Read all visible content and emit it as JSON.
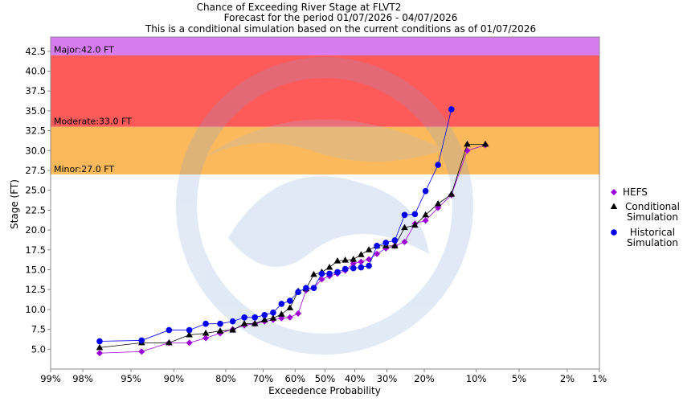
{
  "chart_data": {
    "type": "scatter",
    "title_lines": [
      "Chance of Exceeding River Stage at FLVT2",
      "Forecast for the period 01/07/2026 - 04/07/2026",
      "This is a conditional simulation based on the current conditions as of 01/07/2026"
    ],
    "xlabel": "Exceedence Probability",
    "ylabel": "Stage (FT)",
    "x_scale": "normal-probability (reversed)",
    "x_ticks": [
      {
        "p": 99,
        "label": "99%"
      },
      {
        "p": 98,
        "label": "98%"
      },
      {
        "p": 95,
        "label": "95%"
      },
      {
        "p": 90,
        "label": "90%"
      },
      {
        "p": 80,
        "label": "80%"
      },
      {
        "p": 70,
        "label": "70%"
      },
      {
        "p": 60,
        "label": "60%"
      },
      {
        "p": 50,
        "label": "50%"
      },
      {
        "p": 40,
        "label": "40%"
      },
      {
        "p": 30,
        "label": "30%"
      },
      {
        "p": 20,
        "label": "20%"
      },
      {
        "p": 10,
        "label": "10%"
      },
      {
        "p": 5,
        "label": "5%"
      },
      {
        "p": 2,
        "label": "2%"
      },
      {
        "p": 1,
        "label": "1%"
      }
    ],
    "ylim": [
      2.5,
      44.3
    ],
    "y_ticks": [
      "5.0",
      "7.5",
      "10.0",
      "12.5",
      "15.0",
      "17.5",
      "20.0",
      "22.5",
      "25.0",
      "27.5",
      "30.0",
      "32.5",
      "35.0",
      "37.5",
      "40.0",
      "42.5"
    ],
    "flood_bands": [
      {
        "label": "Minor:27.0 FT",
        "from": 27.0,
        "to": 33.0,
        "color": "#fbb95c"
      },
      {
        "label": "Moderate:33.0 FT",
        "from": 33.0,
        "to": 42.0,
        "color": "#ff5a5a"
      },
      {
        "label": "Major:42.0 FT",
        "from": 42.0,
        "to": 44.3,
        "color": "#d67cf0"
      }
    ],
    "series": [
      {
        "name": "HEFS",
        "color": "#9b00d8",
        "marker": "diamond",
        "points": [
          [
            97.2,
            4.5
          ],
          [
            94.0,
            4.7
          ],
          [
            90.7,
            5.8
          ],
          [
            87.5,
            5.8
          ],
          [
            84.4,
            6.4
          ],
          [
            81.3,
            7.0
          ],
          [
            78.3,
            7.5
          ],
          [
            75.3,
            8.0
          ],
          [
            72.4,
            8.2
          ],
          [
            69.6,
            8.5
          ],
          [
            67.0,
            8.7
          ],
          [
            64.4,
            8.9
          ],
          [
            61.7,
            9.0
          ],
          [
            59.0,
            9.5
          ],
          [
            56.4,
            12.4
          ],
          [
            53.8,
            12.7
          ],
          [
            51.1,
            13.8
          ],
          [
            48.5,
            14.2
          ],
          [
            45.8,
            14.5
          ],
          [
            43.2,
            14.9
          ],
          [
            40.5,
            15.8
          ],
          [
            38.0,
            16.0
          ],
          [
            35.5,
            16.3
          ],
          [
            33.0,
            17.0
          ],
          [
            30.3,
            17.7
          ],
          [
            27.7,
            18.0
          ],
          [
            25.0,
            18.5
          ],
          [
            22.3,
            20.8
          ],
          [
            19.7,
            21.2
          ],
          [
            16.9,
            22.8
          ],
          [
            14.2,
            24.4
          ],
          [
            11.4,
            30.0
          ],
          [
            8.7,
            30.7
          ]
        ]
      },
      {
        "name": "Conditional Simulation",
        "color": "#000000",
        "marker": "triangle",
        "points": [
          [
            97.2,
            5.2
          ],
          [
            94.0,
            5.8
          ],
          [
            90.7,
            5.8
          ],
          [
            87.5,
            6.8
          ],
          [
            84.4,
            7.0
          ],
          [
            81.3,
            7.3
          ],
          [
            78.3,
            7.4
          ],
          [
            75.3,
            8.2
          ],
          [
            72.4,
            8.2
          ],
          [
            69.6,
            8.7
          ],
          [
            67.0,
            8.9
          ],
          [
            64.4,
            9.4
          ],
          [
            61.7,
            10.2
          ],
          [
            59.0,
            12.3
          ],
          [
            56.4,
            12.6
          ],
          [
            53.8,
            14.4
          ],
          [
            51.1,
            14.7
          ],
          [
            48.5,
            15.3
          ],
          [
            45.8,
            16.1
          ],
          [
            43.2,
            16.2
          ],
          [
            40.5,
            16.3
          ],
          [
            38.0,
            16.9
          ],
          [
            35.5,
            17.5
          ],
          [
            33.0,
            18.0
          ],
          [
            30.3,
            18.0
          ],
          [
            27.7,
            18.0
          ],
          [
            25.0,
            20.3
          ],
          [
            22.3,
            20.6
          ],
          [
            19.7,
            21.9
          ],
          [
            16.9,
            23.3
          ],
          [
            14.2,
            24.5
          ],
          [
            11.4,
            30.8
          ],
          [
            8.7,
            30.8
          ]
        ]
      },
      {
        "name": "Historical Simulation",
        "color": "#0000ee",
        "marker": "circle",
        "points": [
          [
            97.2,
            6.0
          ],
          [
            94.0,
            6.1
          ],
          [
            90.7,
            7.4
          ],
          [
            87.5,
            7.4
          ],
          [
            84.4,
            8.2
          ],
          [
            81.3,
            8.2
          ],
          [
            78.3,
            8.5
          ],
          [
            75.3,
            9.0
          ],
          [
            72.4,
            9.0
          ],
          [
            69.6,
            9.3
          ],
          [
            67.0,
            9.6
          ],
          [
            64.4,
            10.7
          ],
          [
            61.7,
            11.1
          ],
          [
            59.0,
            12.2
          ],
          [
            56.4,
            12.7
          ],
          [
            53.8,
            12.7
          ],
          [
            51.1,
            14.5
          ],
          [
            48.5,
            14.5
          ],
          [
            45.8,
            14.7
          ],
          [
            43.2,
            15.1
          ],
          [
            40.5,
            15.2
          ],
          [
            38.0,
            15.3
          ],
          [
            35.5,
            15.5
          ],
          [
            33.0,
            18.0
          ],
          [
            30.3,
            18.4
          ],
          [
            27.7,
            18.7
          ],
          [
            25.0,
            21.9
          ],
          [
            22.3,
            22.0
          ],
          [
            19.7,
            24.9
          ],
          [
            16.9,
            28.2
          ],
          [
            14.2,
            35.2
          ]
        ]
      }
    ],
    "legend": {
      "placement": "right",
      "entries": [
        {
          "lines": [
            "HEFS"
          ],
          "series": 0
        },
        {
          "lines": [
            "Conditional",
            "Simulation"
          ],
          "series": 1
        },
        {
          "lines": [
            "Historical",
            "Simulation"
          ],
          "series": 2
        }
      ]
    },
    "grid": false
  }
}
